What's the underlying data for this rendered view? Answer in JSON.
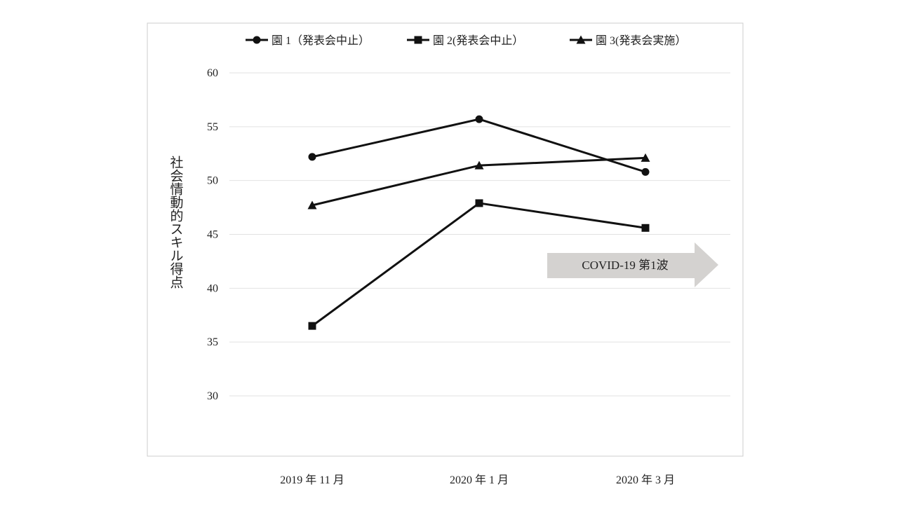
{
  "chart_data": {
    "type": "line",
    "categories": [
      "2019 年 11 月",
      "2020 年 1 月",
      "2020 年 3 月"
    ],
    "series": [
      {
        "name": "園 1（発表会中止）",
        "marker": "circle",
        "values": [
          52.2,
          55.7,
          50.8
        ]
      },
      {
        "name": "園 2(発表会中止）",
        "marker": "square",
        "values": [
          36.5,
          47.9,
          45.6
        ]
      },
      {
        "name": "園 3(発表会実施）",
        "marker": "triangle",
        "values": [
          47.7,
          51.4,
          52.1
        ]
      }
    ],
    "ylabel": "社会情動的スキル得点",
    "ylim": [
      30,
      60
    ],
    "yticks": [
      30,
      35,
      40,
      45,
      50,
      55,
      60
    ],
    "grid": true,
    "legend_position": "top",
    "annotation": {
      "text": "COVID-19 第1波",
      "color": "#d4d2d0"
    },
    "colors": {
      "line": "#111111",
      "grid": "#e2e2e2",
      "frame": "#cccccc"
    }
  }
}
